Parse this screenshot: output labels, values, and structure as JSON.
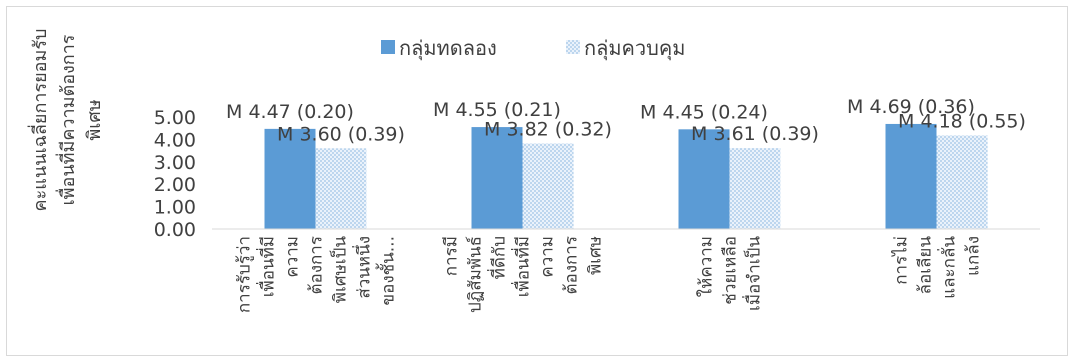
{
  "chart_data": {
    "type": "bar",
    "title": "",
    "ylabel_lines": [
      "คะแนนเฉลี่ยการยอมรับ",
      "เพื่อนที่มีความต้องการ",
      "พิเศษ"
    ],
    "xlabel": "",
    "ylim": [
      0,
      5
    ],
    "yticks": [
      "0.00",
      "1.00",
      "2.00",
      "3.00",
      "4.00",
      "5.00"
    ],
    "grid": false,
    "legend": "top",
    "categories": [
      [
        "การรับรู้ว่า",
        "เพื่อนที่มี",
        "ความ",
        "ต้องการ",
        "พิเศษเป็น",
        "ส่วนหนึ่ง",
        "ของชั้น..."
      ],
      [
        "การมี",
        "ปฏิสัมพันธ์",
        "ที่ดีกับ",
        "เพื่อนที่มี",
        "ความ",
        "ต้องการ",
        "พิเศษ"
      ],
      [
        "ให้ความ",
        "ช่วยเหลือ",
        "เมื่อจำเป็น"
      ],
      [
        "การไม่",
        "ล้อเลียน",
        "และกลั่น",
        "แกล้ง"
      ]
    ],
    "series": [
      {
        "name": "กลุ่มทดลอง",
        "color": "#5b9bd5",
        "pattern": "solid",
        "values": [
          4.47,
          4.55,
          4.45,
          4.69
        ],
        "labels": [
          "M 4.47 (0.20)",
          "M 4.55 (0.21)",
          "M 4.45 (0.24)",
          "M 4.69 (0.36)"
        ]
      },
      {
        "name": "กลุ่มควบคุม",
        "color": "#9dc3e6",
        "pattern": "dotted",
        "values": [
          3.6,
          3.82,
          3.61,
          4.18
        ],
        "labels": [
          "M 3.60 (0.39)",
          "M 3.82 (0.32)",
          "M 3.61 (0.39)",
          "M 4.18 (0.55)"
        ]
      }
    ]
  }
}
